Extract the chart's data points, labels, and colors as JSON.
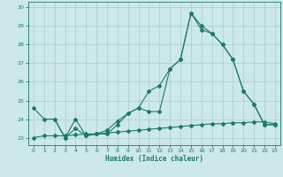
{
  "xlabel": "Humidex (Indice chaleur)",
  "xlim": [
    -0.5,
    23.5
  ],
  "ylim": [
    22.6,
    30.3
  ],
  "yticks": [
    23,
    24,
    25,
    26,
    27,
    28,
    29,
    30
  ],
  "xticks": [
    0,
    1,
    2,
    3,
    4,
    5,
    6,
    7,
    8,
    9,
    10,
    11,
    12,
    13,
    14,
    15,
    16,
    17,
    18,
    19,
    20,
    21,
    22,
    23
  ],
  "bg_color": "#cce8e8",
  "line_color": "#1a7a6e",
  "grid_color": "#aacccc",
  "line1_x": [
    0,
    1,
    2,
    3,
    4,
    5,
    6,
    7,
    8,
    9,
    10,
    11,
    12,
    13,
    14,
    15,
    16,
    17,
    18,
    19,
    20,
    21,
    22,
    23
  ],
  "line1_y": [
    24.6,
    24.0,
    24.0,
    23.0,
    23.5,
    23.1,
    23.2,
    23.2,
    23.7,
    24.3,
    24.6,
    24.4,
    24.4,
    26.7,
    27.2,
    29.7,
    29.0,
    28.6,
    28.0,
    27.2,
    25.5,
    24.8,
    23.7,
    23.7
  ],
  "line2_x": [
    2,
    3,
    4,
    5,
    6,
    7,
    8,
    9,
    10,
    11,
    12,
    13,
    14,
    15,
    16,
    17,
    18,
    19,
    20,
    21,
    22,
    23
  ],
  "line2_y": [
    24.0,
    23.0,
    24.0,
    23.1,
    23.2,
    23.4,
    23.9,
    24.3,
    24.6,
    25.5,
    25.8,
    26.7,
    27.2,
    29.7,
    28.8,
    28.6,
    28.0,
    27.2,
    25.5,
    24.8,
    23.7,
    23.7
  ],
  "line3_x": [
    0,
    1,
    2,
    3,
    4,
    5,
    6,
    7,
    8,
    9,
    10,
    11,
    12,
    13,
    14,
    15,
    16,
    17,
    18,
    19,
    20,
    21,
    22,
    23
  ],
  "line3_y": [
    23.0,
    23.1,
    23.1,
    23.1,
    23.15,
    23.2,
    23.2,
    23.25,
    23.3,
    23.35,
    23.4,
    23.45,
    23.5,
    23.55,
    23.6,
    23.65,
    23.7,
    23.75,
    23.75,
    23.8,
    23.8,
    23.85,
    23.85,
    23.75
  ]
}
